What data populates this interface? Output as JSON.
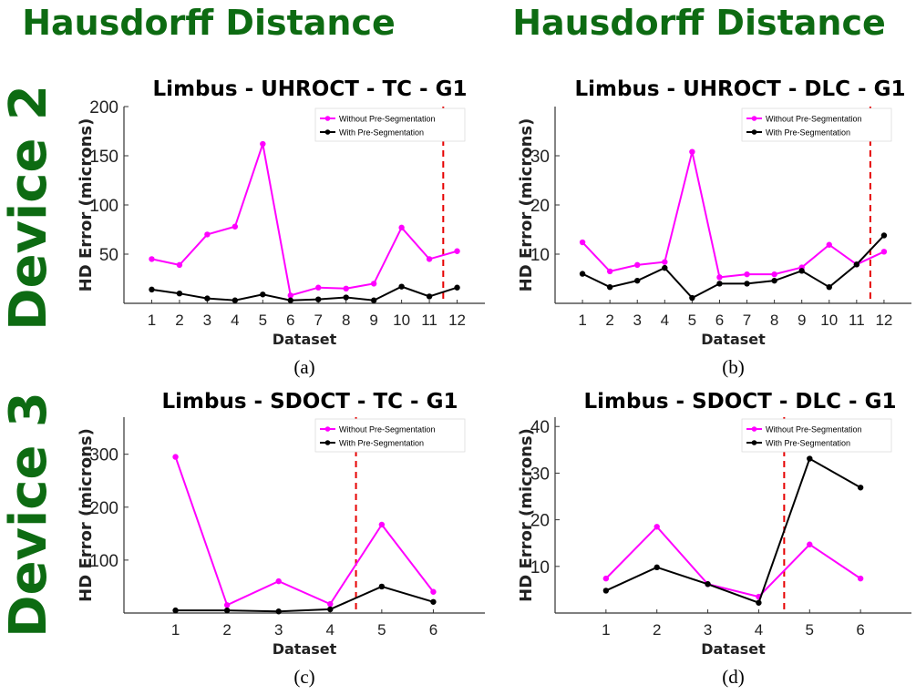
{
  "headers": {
    "columns": [
      "Hausdorff Distance",
      "Hausdorff Distance"
    ],
    "rows": [
      "Device 2",
      "Device 3"
    ],
    "color": "#0d6b12"
  },
  "colors": {
    "without": "#ff00ff",
    "with": "#000000",
    "divider": "#e60000"
  },
  "chart_data": [
    {
      "type": "line",
      "title": "Limbus - UHROCT - TC - G1",
      "caption": "(a)",
      "xlabel": "Dataset",
      "ylabel": "HD Error (microns)",
      "x": [
        1,
        2,
        3,
        4,
        5,
        6,
        7,
        8,
        9,
        10,
        11,
        12
      ],
      "xlim": [
        0,
        13
      ],
      "ylim": [
        0,
        200
      ],
      "yticks": [
        50,
        100,
        150,
        200
      ],
      "divider_x": 11.5,
      "legend_position": "top-right",
      "series": [
        {
          "name": "Without Pre-Segmentation",
          "values": [
            45,
            39,
            70,
            78,
            162,
            8,
            16,
            15,
            20,
            77,
            45,
            53
          ]
        },
        {
          "name": "With Pre-Segmentation",
          "values": [
            14,
            10,
            5,
            3,
            9,
            3,
            4,
            6,
            3,
            17,
            7,
            16
          ]
        }
      ]
    },
    {
      "type": "line",
      "title": "Limbus - UHROCT - DLC - G1",
      "caption": "(b)",
      "xlabel": "Dataset",
      "ylabel": "HD Error (microns)",
      "x": [
        1,
        2,
        3,
        4,
        5,
        6,
        7,
        8,
        9,
        10,
        11,
        12
      ],
      "xlim": [
        0,
        13
      ],
      "ylim": [
        0,
        40
      ],
      "yticks": [
        10,
        20,
        30
      ],
      "divider_x": 11.5,
      "legend_position": "top-right",
      "series": [
        {
          "name": "Without Pre-Segmentation",
          "values": [
            12.4,
            6.5,
            7.8,
            8.4,
            30.8,
            5.3,
            5.9,
            5.9,
            7.3,
            11.9,
            7.9,
            10.5
          ]
        },
        {
          "name": "With Pre-Segmentation",
          "values": [
            6.0,
            3.3,
            4.6,
            7.2,
            1.1,
            4.0,
            4.0,
            4.6,
            6.6,
            3.3,
            7.9,
            13.8
          ]
        }
      ]
    },
    {
      "type": "line",
      "title": "Limbus - SDOCT - TC - G1",
      "caption": "(c)",
      "xlabel": "Dataset",
      "ylabel": "HD Error (microns)",
      "x": [
        1,
        2,
        3,
        4,
        5,
        6
      ],
      "xlim": [
        0,
        7
      ],
      "ylim": [
        0,
        370
      ],
      "yticks": [
        100,
        200,
        300
      ],
      "divider_x": 4.5,
      "legend_position": "top-right",
      "series": [
        {
          "name": "Without Pre-Segmentation",
          "values": [
            295,
            15,
            60,
            17,
            167,
            40
          ]
        },
        {
          "name": "With Pre-Segmentation",
          "values": [
            5,
            5,
            3,
            7,
            50,
            21
          ]
        }
      ]
    },
    {
      "type": "line",
      "title": "Limbus - SDOCT - DLC - G1",
      "caption": "(d)",
      "xlabel": "Dataset",
      "ylabel": "HD Error (microns)",
      "x": [
        1,
        2,
        3,
        4,
        5,
        6
      ],
      "xlim": [
        0,
        7
      ],
      "ylim": [
        0,
        42
      ],
      "yticks": [
        10,
        20,
        30,
        40
      ],
      "divider_x": 4.5,
      "legend_position": "top-right",
      "series": [
        {
          "name": "Without Pre-Segmentation",
          "values": [
            7.4,
            18.5,
            6.2,
            3.5,
            14.7,
            7.4
          ]
        },
        {
          "name": "With Pre-Segmentation",
          "values": [
            4.8,
            9.8,
            6.2,
            2.2,
            33.1,
            26.9
          ]
        }
      ]
    }
  ]
}
